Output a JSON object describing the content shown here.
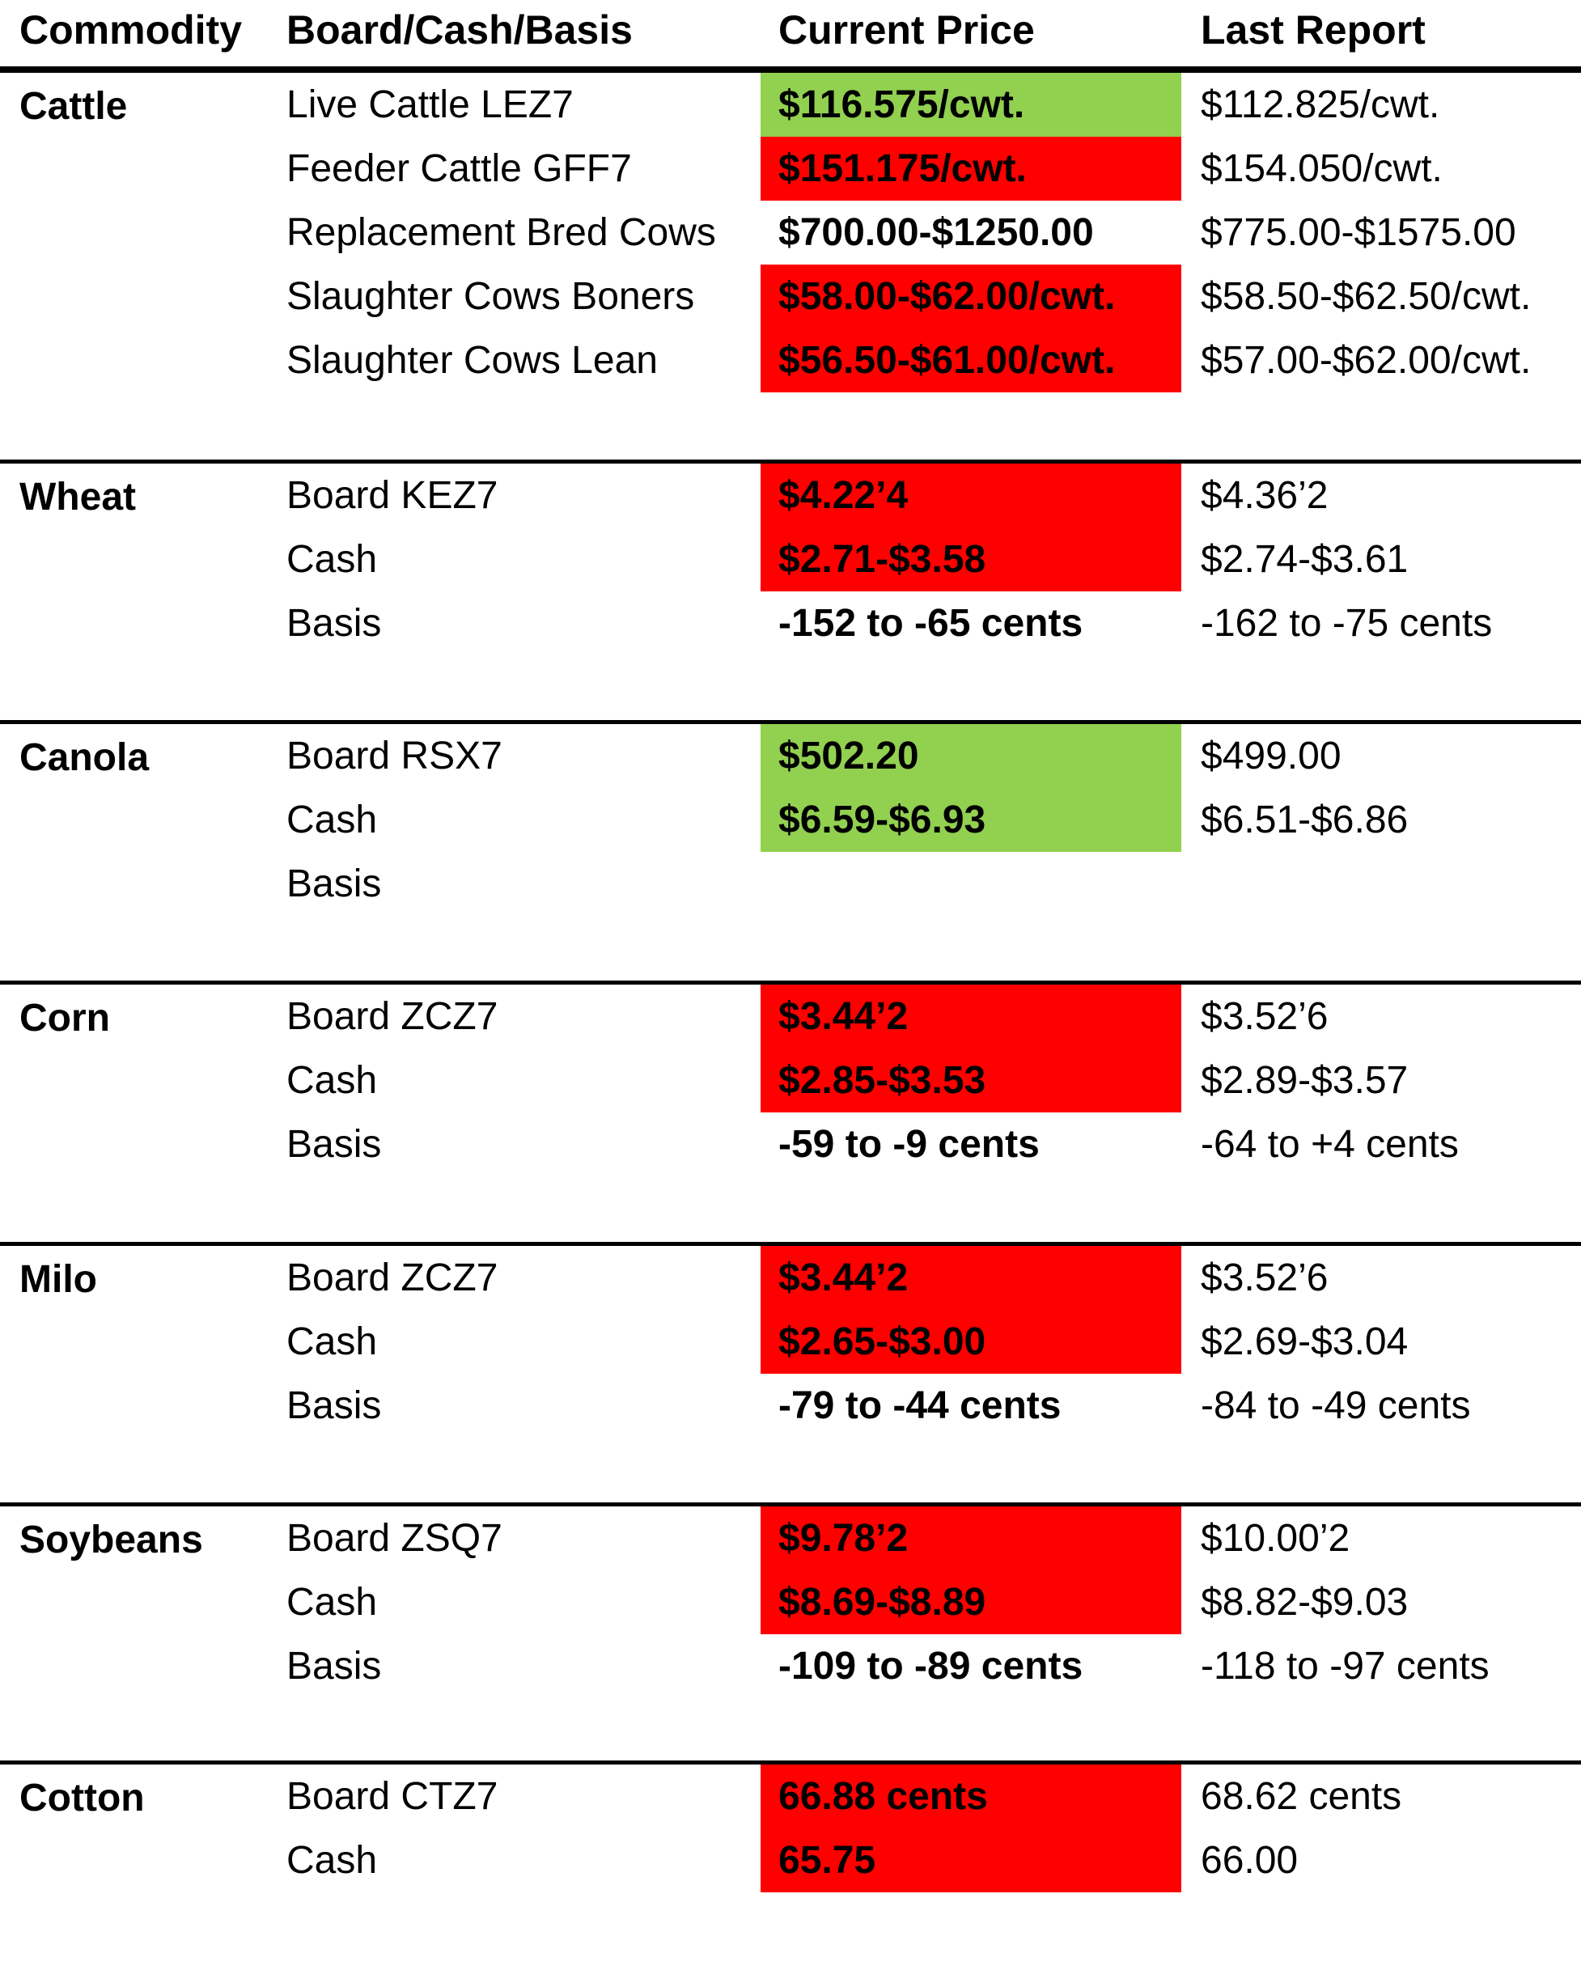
{
  "headers": {
    "commodity": "Commodity",
    "type": "Board/Cash/Basis",
    "current": "Current Price",
    "last": "Last Report"
  },
  "colors": {
    "up": "#92d050",
    "down": "#ff0000"
  },
  "sections": [
    {
      "name": "Cattle",
      "rows": [
        {
          "type": "Live Cattle LEZ7",
          "current": "$116.575/cwt.",
          "status": "up",
          "last": "$112.825/cwt."
        },
        {
          "type": "Feeder Cattle GFF7",
          "current": "$151.175/cwt.",
          "status": "down",
          "last": "$154.050/cwt."
        },
        {
          "type": "Replacement Bred Cows",
          "current": "$700.00-$1250.00",
          "status": "none",
          "last": "$775.00-$1575.00"
        },
        {
          "type": "Slaughter Cows Boners",
          "current": "$58.00-$62.00/cwt.",
          "status": "down",
          "last": "$58.50-$62.50/cwt."
        },
        {
          "type": "Slaughter Cows Lean",
          "current": "$56.50-$61.00/cwt.",
          "status": "down",
          "last": "$57.00-$62.00/cwt."
        }
      ]
    },
    {
      "name": "Wheat",
      "rows": [
        {
          "type": "Board KEZ7",
          "current": "$4.22’4",
          "status": "down",
          "last": "$4.36’2"
        },
        {
          "type": "Cash",
          "current": "$2.71-$3.58",
          "status": "down",
          "last": "$2.74-$3.61"
        },
        {
          "type": "Basis",
          "current": "-152 to -65 cents",
          "status": "none",
          "last": "-162 to -75 cents"
        }
      ]
    },
    {
      "name": "Canola",
      "rows": [
        {
          "type": "Board RSX7",
          "current": "$502.20",
          "status": "up",
          "last": "$499.00"
        },
        {
          "type": "Cash",
          "current": "$6.59-$6.93",
          "status": "up",
          "last": "$6.51-$6.86"
        },
        {
          "type": "Basis",
          "current": "",
          "status": "none",
          "last": ""
        }
      ]
    },
    {
      "name": "Corn",
      "rows": [
        {
          "type": "Board ZCZ7",
          "current": "$3.44’2",
          "status": "down",
          "last": "$3.52’6"
        },
        {
          "type": "Cash",
          "current": "$2.85-$3.53",
          "status": "down",
          "last": "$2.89-$3.57"
        },
        {
          "type": "Basis",
          "current": "-59 to -9 cents",
          "status": "none",
          "last": "-64 to +4 cents"
        }
      ]
    },
    {
      "name": "Milo",
      "rows": [
        {
          "type": "Board ZCZ7",
          "current": "$3.44’2",
          "status": "down",
          "last": "$3.52’6"
        },
        {
          "type": "Cash",
          "current": "$2.65-$3.00",
          "status": "down",
          "last": "$2.69-$3.04"
        },
        {
          "type": "Basis",
          "current": "-79 to -44 cents",
          "status": "none",
          "last": "-84 to -49 cents"
        }
      ]
    },
    {
      "name": "Soybeans",
      "rows": [
        {
          "type": "Board ZSQ7",
          "current": "$9.78’2",
          "status": "down",
          "last": "$10.00’2"
        },
        {
          "type": "Cash",
          "current": "$8.69-$8.89",
          "status": "down",
          "last": "$8.82-$9.03"
        },
        {
          "type": "Basis",
          "current": "-109 to -89 cents",
          "status": "none",
          "last": "-118 to -97 cents"
        }
      ]
    },
    {
      "name": "Cotton",
      "rows": [
        {
          "type": "Board CTZ7",
          "current": "66.88 cents",
          "status": "down",
          "last": "68.62 cents"
        },
        {
          "type": "Cash",
          "current": "65.75",
          "status": "down",
          "last": "66.00"
        }
      ]
    }
  ]
}
